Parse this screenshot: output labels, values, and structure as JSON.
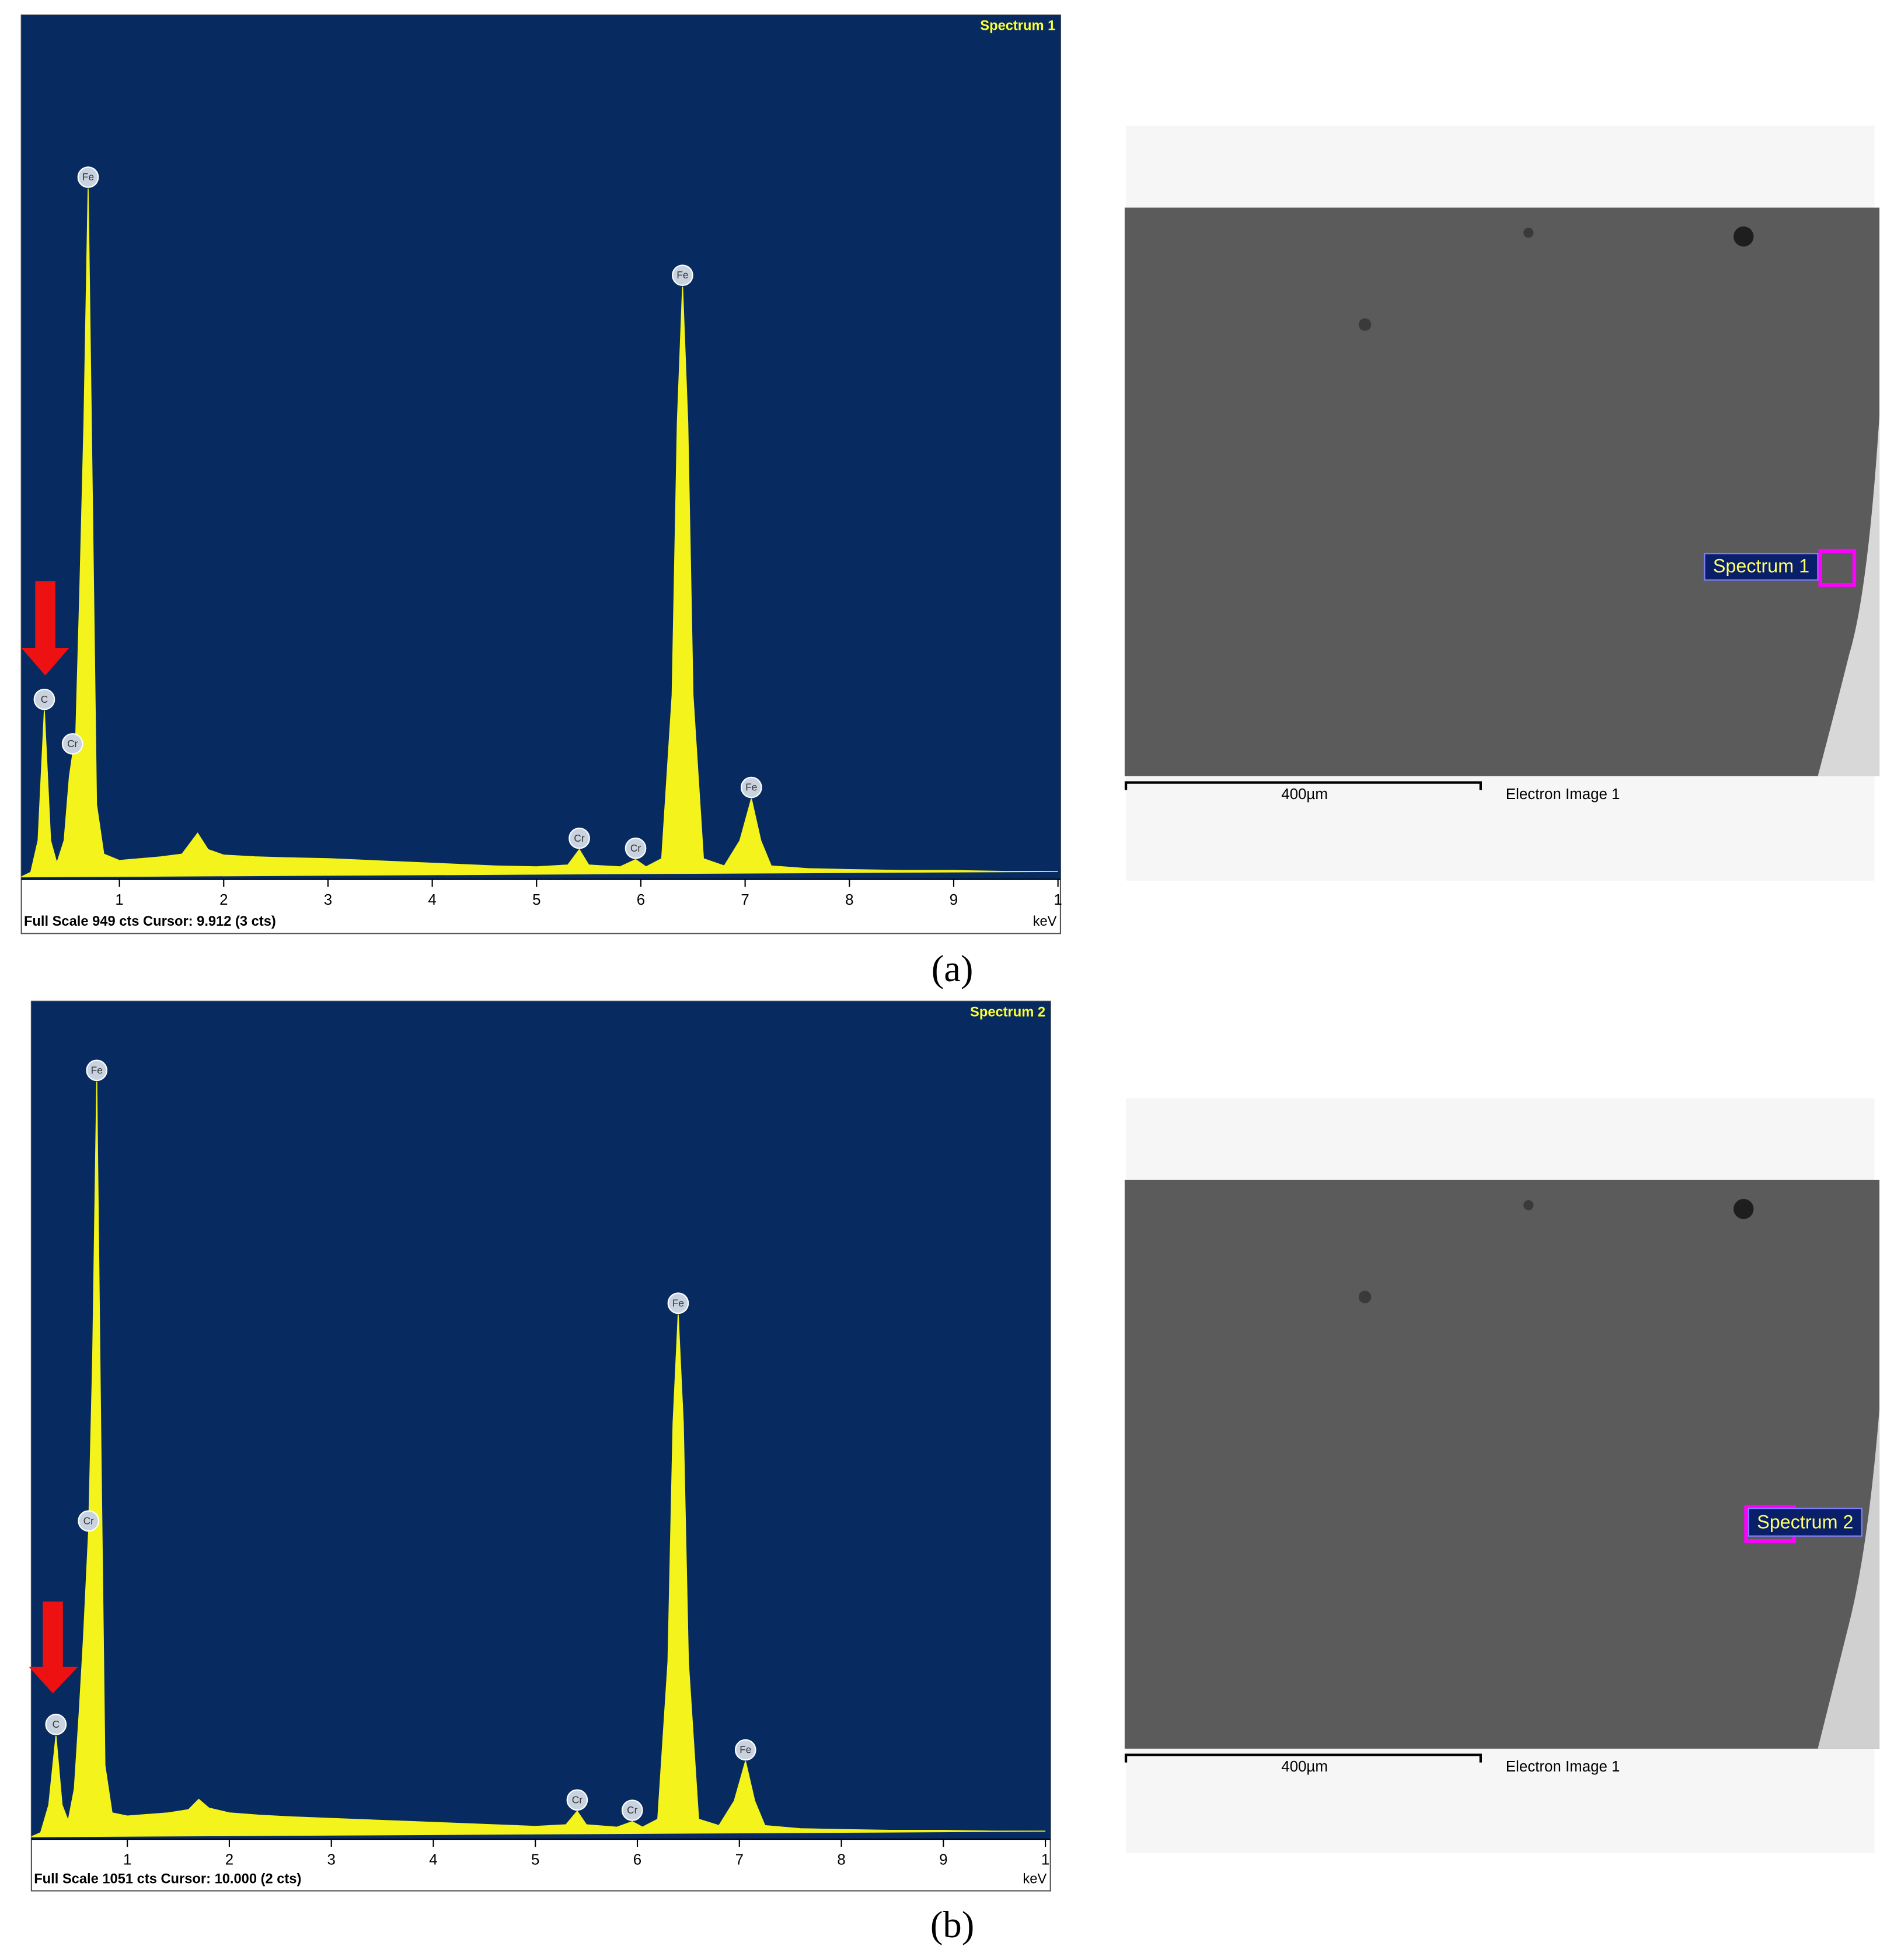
{
  "chart_data": [
    {
      "type": "area",
      "title": "Spectrum 1",
      "footer": "Full Scale 949 cts Cursor: 9.912  (3 cts)",
      "x_label": "keV",
      "panel": "(a)",
      "color": "#f4f41c",
      "background": "#072b61",
      "xlim": [
        0.06,
        10
      ],
      "ylim": [
        0,
        949
      ],
      "xticks": [
        1,
        2,
        3,
        4,
        5,
        6,
        7,
        8,
        9,
        {
          "value": 10,
          "label": "1"
        }
      ],
      "x": [
        0.06,
        0.15,
        0.22,
        0.28,
        0.34,
        0.4,
        0.47,
        0.52,
        0.55,
        0.58,
        0.62,
        0.66,
        0.7,
        0.74,
        0.78,
        0.85,
        1.0,
        1.2,
        1.4,
        1.6,
        1.75,
        1.85,
        2.0,
        2.3,
        2.6,
        3.0,
        3.4,
        3.8,
        4.2,
        4.6,
        5.0,
        5.3,
        5.41,
        5.5,
        5.8,
        5.95,
        6.05,
        6.2,
        6.3,
        6.35,
        6.4,
        6.45,
        6.5,
        6.6,
        6.8,
        6.95,
        7.06,
        7.15,
        7.25,
        7.6,
        8.0,
        8.5,
        9.0,
        9.5,
        10
      ],
      "values": [
        0,
        5,
        40,
        183,
        40,
        15,
        40,
        110,
        134,
        150,
        314,
        500,
        758,
        420,
        80,
        25,
        18,
        20,
        22,
        25,
        48,
        30,
        24,
        22,
        21,
        20,
        18,
        16,
        14,
        12,
        11,
        13,
        30,
        13,
        11,
        19,
        11,
        20,
        200,
        500,
        650,
        500,
        200,
        20,
        12,
        40,
        86,
        40,
        12,
        9,
        8,
        7,
        7,
        6,
        6
      ],
      "annotations": [
        {
          "text": "C",
          "x": 0.28,
          "y": 183
        },
        {
          "text": "Cr",
          "x": 0.55,
          "y": 134
        },
        {
          "text": "Fe",
          "x": 0.7,
          "y": 758
        },
        {
          "text": "Cr",
          "x": 5.41,
          "y": 30
        },
        {
          "text": "Cr",
          "x": 5.95,
          "y": 19
        },
        {
          "text": "Fe",
          "x": 6.4,
          "y": 650
        },
        {
          "text": "Fe",
          "x": 7.06,
          "y": 86
        }
      ],
      "image": {
        "scale_bar": "400µm",
        "caption": "Electron Image 1",
        "marker": "Spectrum 1"
      }
    },
    {
      "type": "area",
      "title": "Spectrum 2",
      "footer": "Full Scale 1051 cts Cursor: 10.000  (2 cts)",
      "x_label": "keV",
      "panel": "(b)",
      "color": "#f4f41c",
      "background": "#072b61",
      "xlim": [
        0.06,
        10
      ],
      "ylim": [
        0,
        1051
      ],
      "xticks": [
        1,
        2,
        3,
        4,
        5,
        6,
        7,
        8,
        9,
        {
          "value": 10,
          "label": "1"
        }
      ],
      "x": [
        0.06,
        0.15,
        0.23,
        0.3,
        0.36,
        0.42,
        0.48,
        0.53,
        0.57,
        0.62,
        0.66,
        0.7,
        0.74,
        0.78,
        0.85,
        1.0,
        1.2,
        1.4,
        1.6,
        1.7,
        1.8,
        2.0,
        2.3,
        2.6,
        3.0,
        3.4,
        3.8,
        4.2,
        4.6,
        5.0,
        5.3,
        5.41,
        5.5,
        5.8,
        5.95,
        6.05,
        6.2,
        6.3,
        6.35,
        6.4,
        6.45,
        6.5,
        6.6,
        6.8,
        6.95,
        7.06,
        7.15,
        7.25,
        7.6,
        8.0,
        8.5,
        9.0,
        9.5,
        10
      ],
      "values": [
        0,
        5,
        40,
        127,
        40,
        20,
        60,
        160,
        250,
        383,
        600,
        950,
        500,
        90,
        30,
        26,
        28,
        30,
        34,
        47,
        36,
        30,
        27,
        25,
        23,
        21,
        19,
        17,
        15,
        13,
        15,
        32,
        15,
        12,
        19,
        12,
        22,
        220,
        520,
        657,
        520,
        220,
        22,
        14,
        45,
        95,
        45,
        14,
        10,
        9,
        8,
        8,
        7,
        7
      ],
      "annotations": [
        {
          "text": "C",
          "x": 0.3,
          "y": 127
        },
        {
          "text": "Cr",
          "x": 0.62,
          "y": 383
        },
        {
          "text": "Fe",
          "x": 0.7,
          "y": 950
        },
        {
          "text": "Cr",
          "x": 5.41,
          "y": 32
        },
        {
          "text": "Cr",
          "x": 5.95,
          "y": 19
        },
        {
          "text": "Fe",
          "x": 6.4,
          "y": 657
        },
        {
          "text": "Fe",
          "x": 7.06,
          "y": 95
        }
      ],
      "image": {
        "scale_bar": "400µm",
        "caption": "Electron Image 1",
        "marker": "Spectrum 2"
      }
    }
  ]
}
